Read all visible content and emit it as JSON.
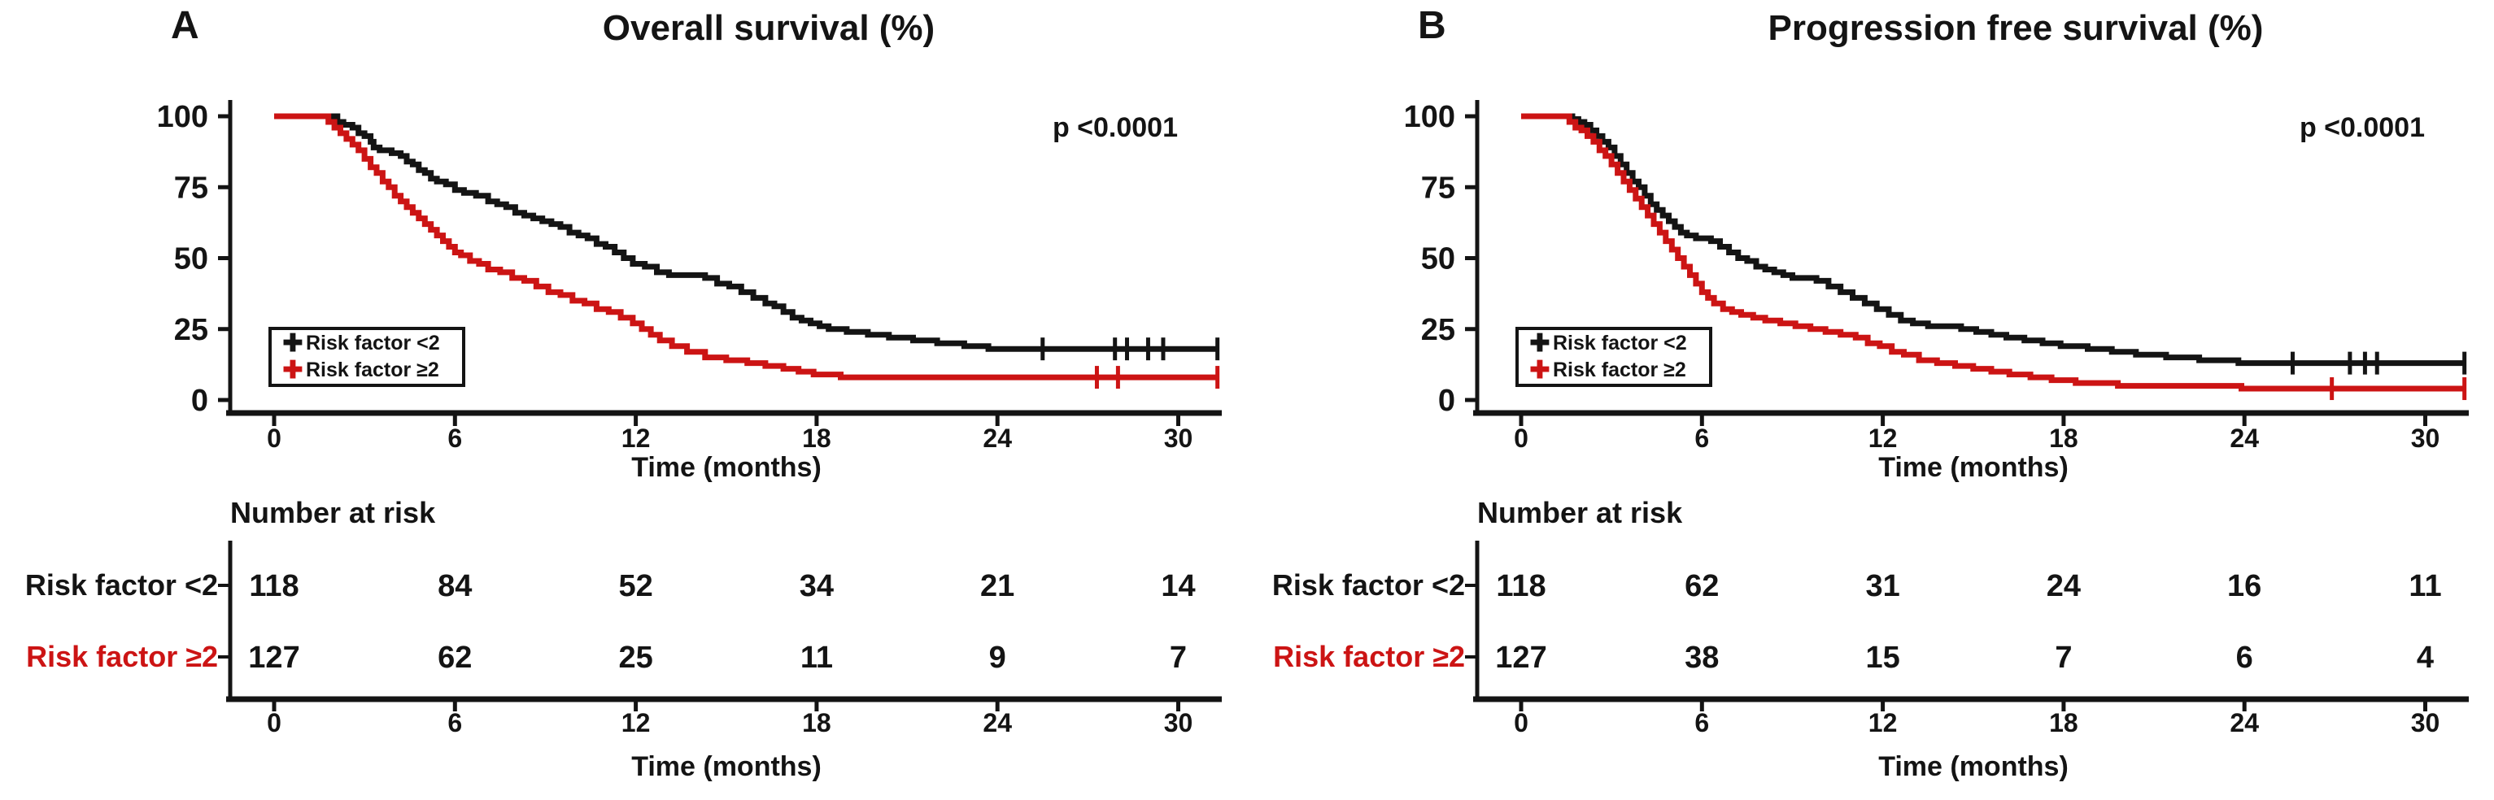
{
  "figure": {
    "background_color": "#ffffff",
    "text_color": "#141414",
    "accent_red": "#cc1414",
    "icons": {
      "censor_marker": "plus-censor-icon",
      "legend_marker_glyph": "✚"
    }
  },
  "chart_data": [
    {
      "type": "line",
      "subtype": "kaplan-meier-step",
      "panel_label": "A",
      "title": "Overall survival (%)",
      "p_value": "p <0.0001",
      "xlabel": "Time (months)",
      "ylabel": "",
      "xlim": [
        0,
        31.5
      ],
      "ylim": [
        0,
        100
      ],
      "x_ticks": [
        0,
        6,
        12,
        18,
        24,
        30
      ],
      "y_ticks": [
        0,
        25,
        50,
        75,
        100
      ],
      "grid": false,
      "legend_position": "inside-bottom-left",
      "legend": [
        {
          "label": "Risk factor <2",
          "color": "#141414"
        },
        {
          "label": "Risk factor ≥2",
          "color": "#cc1414"
        }
      ],
      "series": [
        {
          "name": "Risk factor <2",
          "color": "#141414",
          "steps": [
            [
              0,
              100
            ],
            [
              1.9,
              100
            ],
            [
              2.1,
              98
            ],
            [
              2.3,
              97
            ],
            [
              2.6,
              96
            ],
            [
              2.8,
              94
            ],
            [
              3.0,
              93
            ],
            [
              3.2,
              91
            ],
            [
              3.3,
              89
            ],
            [
              3.5,
              88
            ],
            [
              3.9,
              87
            ],
            [
              4.2,
              86
            ],
            [
              4.4,
              84
            ],
            [
              4.6,
              83
            ],
            [
              4.8,
              81
            ],
            [
              5.0,
              80
            ],
            [
              5.2,
              78
            ],
            [
              5.4,
              77
            ],
            [
              5.7,
              76
            ],
            [
              6.0,
              74
            ],
            [
              6.3,
              73
            ],
            [
              6.7,
              72
            ],
            [
              7.1,
              70
            ],
            [
              7.4,
              69
            ],
            [
              7.7,
              68
            ],
            [
              8.0,
              66
            ],
            [
              8.3,
              65
            ],
            [
              8.6,
              64
            ],
            [
              8.9,
              63
            ],
            [
              9.2,
              62
            ],
            [
              9.5,
              61
            ],
            [
              9.8,
              59
            ],
            [
              10.1,
              58
            ],
            [
              10.4,
              57
            ],
            [
              10.7,
              55
            ],
            [
              11.0,
              54
            ],
            [
              11.3,
              52
            ],
            [
              11.6,
              50
            ],
            [
              11.9,
              48
            ],
            [
              12.3,
              47
            ],
            [
              12.7,
              45
            ],
            [
              13.1,
              44
            ],
            [
              14.3,
              43
            ],
            [
              14.7,
              41
            ],
            [
              15.1,
              40
            ],
            [
              15.5,
              38
            ],
            [
              15.9,
              36
            ],
            [
              16.3,
              34
            ],
            [
              16.6,
              33
            ],
            [
              16.9,
              31
            ],
            [
              17.2,
              29
            ],
            [
              17.5,
              28
            ],
            [
              17.8,
              27
            ],
            [
              18.1,
              26
            ],
            [
              18.4,
              25
            ],
            [
              19.0,
              24
            ],
            [
              19.7,
              23
            ],
            [
              20.4,
              22
            ],
            [
              21.2,
              21
            ],
            [
              22.0,
              20
            ],
            [
              22.9,
              19
            ],
            [
              23.7,
              18
            ],
            [
              31.3,
              18
            ]
          ],
          "censor_marks": [
            25.5,
            27.9,
            28.3,
            29.0,
            29.5,
            31.3
          ]
        },
        {
          "name": "Risk factor ≥2",
          "color": "#cc1414",
          "steps": [
            [
              0,
              100
            ],
            [
              1.6,
              100
            ],
            [
              1.8,
              98
            ],
            [
              2.0,
              96
            ],
            [
              2.2,
              94
            ],
            [
              2.4,
              92
            ],
            [
              2.6,
              90
            ],
            [
              2.8,
              88
            ],
            [
              3.0,
              85
            ],
            [
              3.2,
              82
            ],
            [
              3.4,
              80
            ],
            [
              3.6,
              77
            ],
            [
              3.8,
              75
            ],
            [
              4.0,
              72
            ],
            [
              4.2,
              70
            ],
            [
              4.4,
              68
            ],
            [
              4.6,
              66
            ],
            [
              4.8,
              64
            ],
            [
              5.0,
              62
            ],
            [
              5.2,
              60
            ],
            [
              5.4,
              58
            ],
            [
              5.6,
              56
            ],
            [
              5.8,
              54
            ],
            [
              6.0,
              52
            ],
            [
              6.2,
              51
            ],
            [
              6.5,
              49
            ],
            [
              6.8,
              48
            ],
            [
              7.1,
              46
            ],
            [
              7.5,
              45
            ],
            [
              7.9,
              43
            ],
            [
              8.3,
              42
            ],
            [
              8.7,
              40
            ],
            [
              9.1,
              38
            ],
            [
              9.5,
              37
            ],
            [
              9.9,
              35
            ],
            [
              10.3,
              34
            ],
            [
              10.7,
              32
            ],
            [
              11.1,
              31
            ],
            [
              11.5,
              29
            ],
            [
              11.9,
              27
            ],
            [
              12.2,
              25
            ],
            [
              12.5,
              23
            ],
            [
              12.8,
              21
            ],
            [
              13.2,
              19
            ],
            [
              13.7,
              17
            ],
            [
              14.3,
              15
            ],
            [
              15.0,
              14
            ],
            [
              15.7,
              13
            ],
            [
              16.3,
              12
            ],
            [
              16.9,
              11
            ],
            [
              17.4,
              10
            ],
            [
              17.9,
              9
            ],
            [
              18.8,
              8
            ],
            [
              31.3,
              8
            ]
          ],
          "censor_marks": [
            27.3,
            28.0,
            31.3
          ]
        }
      ],
      "number_at_risk": {
        "heading": "Number at risk",
        "times": [
          0,
          6,
          12,
          18,
          24,
          30
        ],
        "xlabel": "Time (months)",
        "rows": [
          {
            "label": "Risk factor <2",
            "color": "#141414",
            "values": [
              118,
              84,
              52,
              34,
              21,
              14
            ]
          },
          {
            "label": "Risk factor ≥2",
            "color": "#cc1414",
            "values": [
              127,
              62,
              25,
              11,
              9,
              7
            ]
          }
        ]
      }
    },
    {
      "type": "line",
      "subtype": "kaplan-meier-step",
      "panel_label": "B",
      "title": "Progression free survival (%)",
      "p_value": "p <0.0001",
      "xlabel": "Time (months)",
      "ylabel": "",
      "xlim": [
        0,
        31.5
      ],
      "ylim": [
        0,
        100
      ],
      "x_ticks": [
        0,
        6,
        12,
        18,
        24,
        30
      ],
      "y_ticks": [
        0,
        25,
        50,
        75,
        100
      ],
      "grid": false,
      "legend_position": "inside-bottom-left",
      "legend": [
        {
          "label": "Risk factor <2",
          "color": "#141414"
        },
        {
          "label": "Risk factor ≥2",
          "color": "#cc1414"
        }
      ],
      "series": [
        {
          "name": "Risk factor <2",
          "color": "#141414",
          "steps": [
            [
              0,
              100
            ],
            [
              1.5,
              100
            ],
            [
              1.7,
              99
            ],
            [
              1.9,
              98
            ],
            [
              2.1,
              97
            ],
            [
              2.3,
              95
            ],
            [
              2.5,
              93
            ],
            [
              2.7,
              91
            ],
            [
              2.9,
              89
            ],
            [
              3.1,
              86
            ],
            [
              3.3,
              83
            ],
            [
              3.5,
              80
            ],
            [
              3.7,
              77
            ],
            [
              3.9,
              75
            ],
            [
              4.1,
              72
            ],
            [
              4.3,
              69
            ],
            [
              4.5,
              67
            ],
            [
              4.7,
              65
            ],
            [
              4.9,
              63
            ],
            [
              5.1,
              61
            ],
            [
              5.3,
              59
            ],
            [
              5.5,
              58
            ],
            [
              5.8,
              57
            ],
            [
              6.3,
              56
            ],
            [
              6.6,
              54
            ],
            [
              6.9,
              52
            ],
            [
              7.2,
              50
            ],
            [
              7.5,
              49
            ],
            [
              7.8,
              47
            ],
            [
              8.1,
              46
            ],
            [
              8.4,
              45
            ],
            [
              8.7,
              44
            ],
            [
              9.0,
              43
            ],
            [
              9.8,
              42
            ],
            [
              10.2,
              40
            ],
            [
              10.6,
              38
            ],
            [
              11.0,
              36
            ],
            [
              11.4,
              34
            ],
            [
              11.8,
              32
            ],
            [
              12.2,
              30
            ],
            [
              12.6,
              28
            ],
            [
              13.0,
              27
            ],
            [
              13.5,
              26
            ],
            [
              14.6,
              25
            ],
            [
              15.1,
              24
            ],
            [
              15.6,
              23
            ],
            [
              16.1,
              22
            ],
            [
              16.7,
              21
            ],
            [
              17.3,
              20
            ],
            [
              17.9,
              19
            ],
            [
              18.8,
              18
            ],
            [
              19.6,
              17
            ],
            [
              20.4,
              16
            ],
            [
              21.4,
              15
            ],
            [
              22.5,
              14
            ],
            [
              23.8,
              13
            ],
            [
              31.3,
              13
            ]
          ],
          "censor_marks": [
            25.6,
            27.5,
            28.0,
            28.4,
            31.3
          ]
        },
        {
          "name": "Risk factor ≥2",
          "color": "#cc1414",
          "steps": [
            [
              0,
              100
            ],
            [
              1.4,
              100
            ],
            [
              1.6,
              98
            ],
            [
              1.8,
              96
            ],
            [
              2.0,
              95
            ],
            [
              2.2,
              93
            ],
            [
              2.4,
              91
            ],
            [
              2.6,
              88
            ],
            [
              2.8,
              86
            ],
            [
              3.0,
              83
            ],
            [
              3.2,
              80
            ],
            [
              3.4,
              77
            ],
            [
              3.6,
              74
            ],
            [
              3.8,
              71
            ],
            [
              4.0,
              68
            ],
            [
              4.2,
              65
            ],
            [
              4.4,
              62
            ],
            [
              4.6,
              59
            ],
            [
              4.8,
              56
            ],
            [
              5.0,
              53
            ],
            [
              5.2,
              50
            ],
            [
              5.4,
              47
            ],
            [
              5.6,
              44
            ],
            [
              5.8,
              41
            ],
            [
              6.0,
              38
            ],
            [
              6.2,
              36
            ],
            [
              6.4,
              34
            ],
            [
              6.7,
              32
            ],
            [
              7.0,
              31
            ],
            [
              7.3,
              30
            ],
            [
              7.7,
              29
            ],
            [
              8.1,
              28
            ],
            [
              8.6,
              27
            ],
            [
              9.1,
              26
            ],
            [
              9.6,
              25
            ],
            [
              10.1,
              24
            ],
            [
              10.6,
              23
            ],
            [
              11.1,
              22
            ],
            [
              11.5,
              20
            ],
            [
              11.9,
              19
            ],
            [
              12.3,
              17
            ],
            [
              12.7,
              16
            ],
            [
              13.2,
              14
            ],
            [
              13.8,
              13
            ],
            [
              14.4,
              12
            ],
            [
              15.0,
              11
            ],
            [
              15.6,
              10
            ],
            [
              16.2,
              9
            ],
            [
              16.9,
              8
            ],
            [
              17.6,
              7
            ],
            [
              18.4,
              6
            ],
            [
              19.8,
              5
            ],
            [
              23.9,
              4
            ],
            [
              31.3,
              4
            ]
          ],
          "censor_marks": [
            26.9,
            31.3
          ]
        }
      ],
      "number_at_risk": {
        "heading": "Number at risk",
        "times": [
          0,
          6,
          12,
          18,
          24,
          30
        ],
        "xlabel": "Time (months)",
        "rows": [
          {
            "label": "Risk factor <2",
            "color": "#141414",
            "values": [
              118,
              62,
              31,
              24,
              16,
              11
            ]
          },
          {
            "label": "Risk factor ≥2",
            "color": "#cc1414",
            "values": [
              127,
              38,
              15,
              7,
              6,
              4
            ]
          }
        ]
      }
    }
  ]
}
